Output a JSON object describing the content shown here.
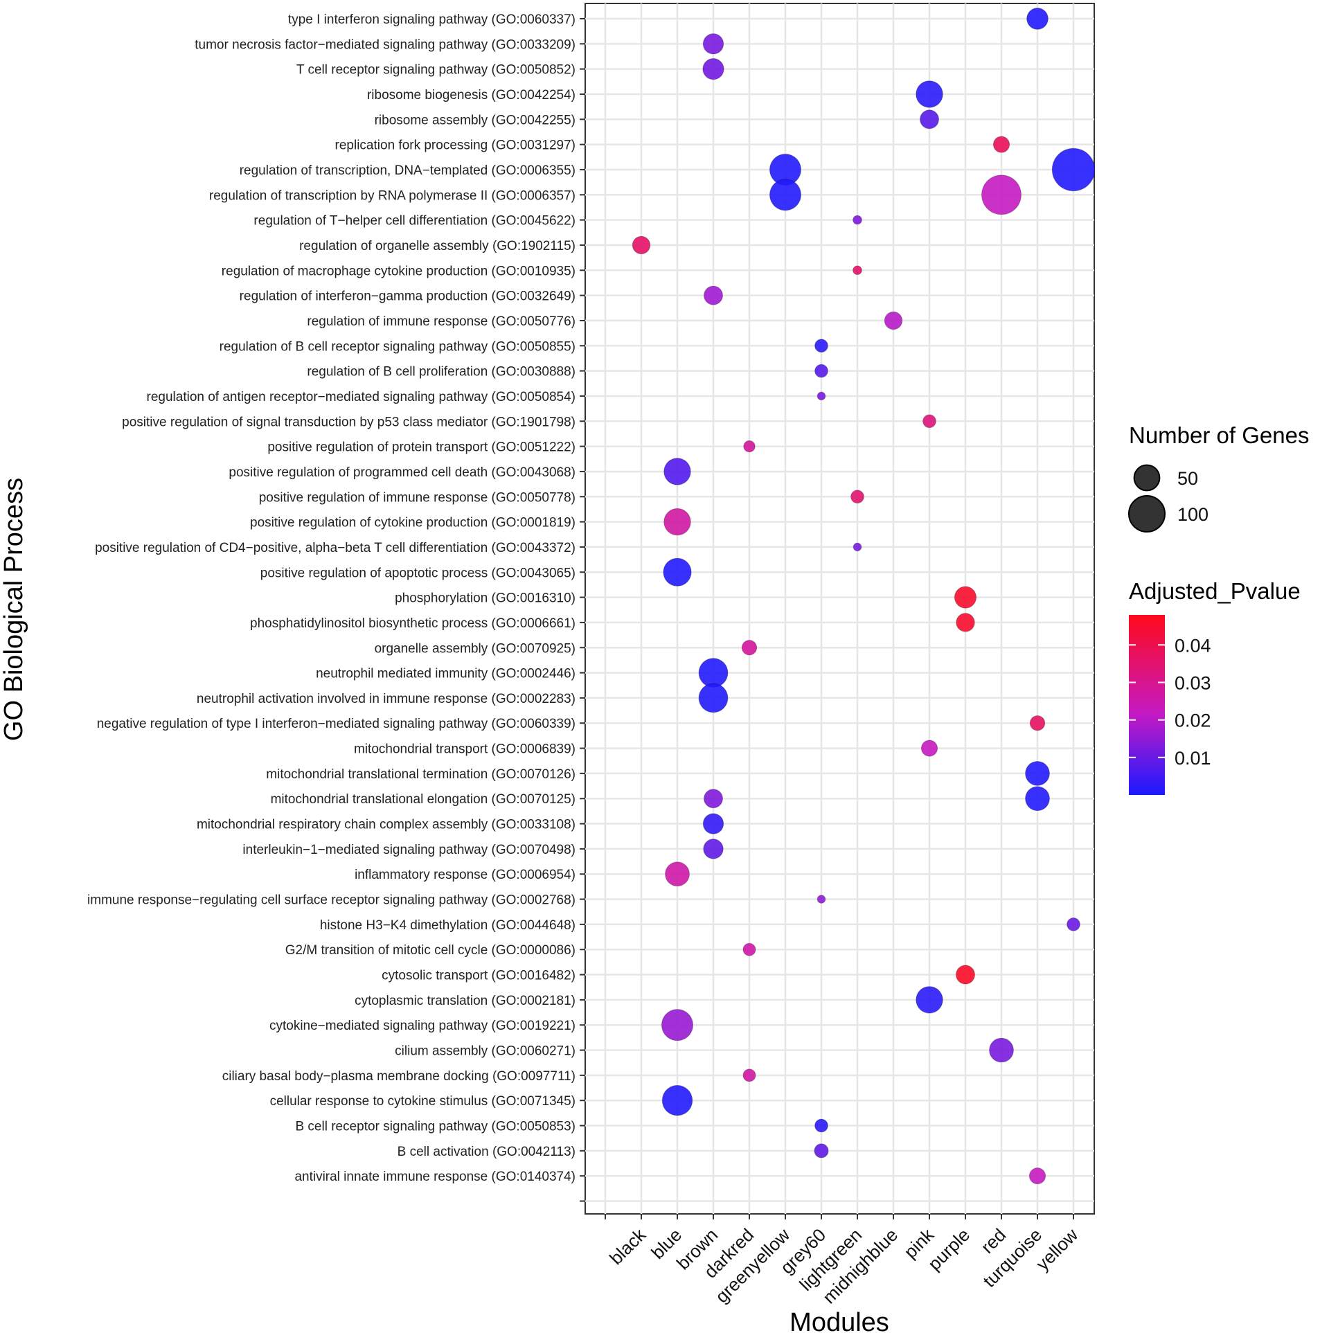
{
  "chart_data": {
    "type": "scatter",
    "title": "",
    "xlabel": "Modules",
    "ylabel": "GO Biological Process",
    "grid": true,
    "legend_position": "right",
    "x_categories": [
      "black",
      "blue",
      "brown",
      "darkred",
      "greenyellow",
      "grey60",
      "lightgreen",
      "midnighblue",
      "pink",
      "purple",
      "red",
      "turquoise",
      "yellow"
    ],
    "y_categories": [
      "type I interferon signaling pathway (GO:0060337)",
      "tumor necrosis factor−mediated signaling pathway (GO:0033209)",
      "T cell receptor signaling pathway (GO:0050852)",
      "ribosome biogenesis (GO:0042254)",
      "ribosome assembly (GO:0042255)",
      "replication fork processing (GO:0031297)",
      "regulation of transcription, DNA−templated (GO:0006355)",
      "regulation of transcription by RNA polymerase II (GO:0006357)",
      "regulation of T−helper cell differentiation (GO:0045622)",
      "regulation of organelle assembly (GO:1902115)",
      "regulation of macrophage cytokine production (GO:0010935)",
      "regulation of interferon−gamma production (GO:0032649)",
      "regulation of immune response (GO:0050776)",
      "regulation of B cell receptor signaling pathway (GO:0050855)",
      "regulation of B cell proliferation (GO:0030888)",
      "regulation of antigen receptor−mediated signaling pathway (GO:0050854)",
      "positive regulation of signal transduction by p53 class mediator (GO:1901798)",
      "positive regulation of protein transport (GO:0051222)",
      "positive regulation of programmed cell death (GO:0043068)",
      "positive regulation of immune response (GO:0050778)",
      "positive regulation of cytokine production (GO:0001819)",
      "positive regulation of CD4−positive, alpha−beta T cell differentiation (GO:0043372)",
      "positive regulation of apoptotic process (GO:0043065)",
      "phosphorylation (GO:0016310)",
      "phosphatidylinositol biosynthetic process (GO:0006661)",
      "organelle assembly (GO:0070925)",
      "neutrophil mediated immunity (GO:0002446)",
      "neutrophil activation involved in immune response (GO:0002283)",
      "negative regulation of type I interferon−mediated signaling pathway (GO:0060339)",
      "mitochondrial transport (GO:0006839)",
      "mitochondrial translational termination (GO:0070126)",
      "mitochondrial translational elongation (GO:0070125)",
      "mitochondrial respiratory chain complex assembly (GO:0033108)",
      "interleukin−1−mediated signaling pathway (GO:0070498)",
      "inflammatory response (GO:0006954)",
      "immune response−regulating cell surface receptor signaling pathway (GO:0002768)",
      "histone H3−K4 dimethylation (GO:0044648)",
      "G2/M transition of mitotic cell cycle (GO:0000086)",
      "cytosolic transport (GO:0016482)",
      "cytoplasmic translation (GO:0002181)",
      "cytokine−mediated signaling pathway (GO:0019221)",
      "cilium assembly (GO:0060271)",
      "ciliary basal body−plasma membrane docking (GO:0097711)",
      "cellular response to cytokine stimulus (GO:0071345)",
      "B cell receptor signaling pathway (GO:0050853)",
      "B cell activation (GO:0042113)",
      "antiviral innate immune response (GO:0140374)"
    ],
    "points": [
      {
        "term": 0,
        "module": "turquoise",
        "genes": 35,
        "padj": 0.001
      },
      {
        "term": 1,
        "module": "brown",
        "genes": 32,
        "padj": 0.012
      },
      {
        "term": 2,
        "module": "brown",
        "genes": 34,
        "padj": 0.011
      },
      {
        "term": 3,
        "module": "pink",
        "genes": 55,
        "padj": 0.002
      },
      {
        "term": 4,
        "module": "pink",
        "genes": 27,
        "padj": 0.008
      },
      {
        "term": 5,
        "module": "red",
        "genes": 20,
        "padj": 0.038
      },
      {
        "term": 6,
        "module": "greenyellow",
        "genes": 75,
        "padj": 0.001
      },
      {
        "term": 6,
        "module": "yellow",
        "genes": 140,
        "padj": 0.001
      },
      {
        "term": 7,
        "module": "greenyellow",
        "genes": 75,
        "padj": 0.001
      },
      {
        "term": 7,
        "module": "red",
        "genes": 120,
        "padj": 0.022
      },
      {
        "term": 8,
        "module": "lightgreen",
        "genes": 6,
        "padj": 0.013
      },
      {
        "term": 9,
        "module": "black",
        "genes": 24,
        "padj": 0.036
      },
      {
        "term": 10,
        "module": "lightgreen",
        "genes": 6,
        "padj": 0.036
      },
      {
        "term": 11,
        "module": "brown",
        "genes": 27,
        "padj": 0.017
      },
      {
        "term": 12,
        "module": "midnighblue",
        "genes": 24,
        "padj": 0.02
      },
      {
        "term": 13,
        "module": "grey60",
        "genes": 13,
        "padj": 0.002
      },
      {
        "term": 14,
        "module": "grey60",
        "genes": 13,
        "padj": 0.008
      },
      {
        "term": 15,
        "module": "grey60",
        "genes": 5,
        "padj": 0.012
      },
      {
        "term": 16,
        "module": "pink",
        "genes": 13,
        "padj": 0.033
      },
      {
        "term": 17,
        "module": "darkred",
        "genes": 10,
        "padj": 0.028
      },
      {
        "term": 18,
        "module": "blue",
        "genes": 55,
        "padj": 0.007
      },
      {
        "term": 19,
        "module": "lightgreen",
        "genes": 13,
        "padj": 0.035
      },
      {
        "term": 20,
        "module": "blue",
        "genes": 55,
        "padj": 0.027
      },
      {
        "term": 21,
        "module": "lightgreen",
        "genes": 5,
        "padj": 0.012
      },
      {
        "term": 22,
        "module": "blue",
        "genes": 60,
        "padj": 0.001
      },
      {
        "term": 23,
        "module": "purple",
        "genes": 36,
        "padj": 0.045
      },
      {
        "term": 24,
        "module": "purple",
        "genes": 26,
        "padj": 0.045
      },
      {
        "term": 25,
        "module": "darkred",
        "genes": 17,
        "padj": 0.028
      },
      {
        "term": 26,
        "module": "brown",
        "genes": 65,
        "padj": 0.001
      },
      {
        "term": 27,
        "module": "brown",
        "genes": 65,
        "padj": 0.001
      },
      {
        "term": 28,
        "module": "turquoise",
        "genes": 17,
        "padj": 0.037
      },
      {
        "term": 29,
        "module": "pink",
        "genes": 20,
        "padj": 0.022
      },
      {
        "term": 30,
        "module": "turquoise",
        "genes": 45,
        "padj": 0.001
      },
      {
        "term": 31,
        "module": "turquoise",
        "genes": 45,
        "padj": 0.001
      },
      {
        "term": 31,
        "module": "brown",
        "genes": 27,
        "padj": 0.013
      },
      {
        "term": 32,
        "module": "brown",
        "genes": 32,
        "padj": 0.003
      },
      {
        "term": 33,
        "module": "brown",
        "genes": 30,
        "padj": 0.009
      },
      {
        "term": 34,
        "module": "blue",
        "genes": 45,
        "padj": 0.026
      },
      {
        "term": 35,
        "module": "grey60",
        "genes": 5,
        "padj": 0.015
      },
      {
        "term": 36,
        "module": "yellow",
        "genes": 13,
        "padj": 0.01
      },
      {
        "term": 37,
        "module": "darkred",
        "genes": 12,
        "padj": 0.026
      },
      {
        "term": 38,
        "module": "purple",
        "genes": 27,
        "padj": 0.046
      },
      {
        "term": 39,
        "module": "pink",
        "genes": 55,
        "padj": 0.002
      },
      {
        "term": 40,
        "module": "blue",
        "genes": 75,
        "padj": 0.016
      },
      {
        "term": 41,
        "module": "red",
        "genes": 45,
        "padj": 0.012
      },
      {
        "term": 42,
        "module": "darkred",
        "genes": 12,
        "padj": 0.027
      },
      {
        "term": 43,
        "module": "blue",
        "genes": 70,
        "padj": 0.001
      },
      {
        "term": 44,
        "module": "grey60",
        "genes": 13,
        "padj": 0.002
      },
      {
        "term": 45,
        "module": "grey60",
        "genes": 15,
        "padj": 0.009
      },
      {
        "term": 46,
        "module": "turquoise",
        "genes": 20,
        "padj": 0.022
      }
    ],
    "size_legend": {
      "title": "Number of Genes",
      "values": [
        50,
        100
      ],
      "labels": [
        "50",
        "100"
      ]
    },
    "color_legend": {
      "title": "Adjusted_Pvalue",
      "range": [
        0,
        0.048
      ],
      "ticks": [
        0.04,
        0.03,
        0.02,
        0.01
      ],
      "tick_labels": [
        "0.04",
        "0.03",
        "0.02",
        "0.01"
      ],
      "low_color": "#1a1aff",
      "mid_color": "#c41ac4",
      "high_color": "#ff0a1a"
    }
  }
}
